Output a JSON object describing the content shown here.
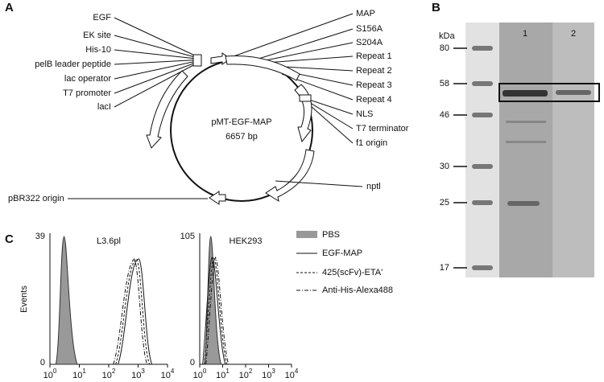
{
  "panel_a": {
    "label": "A",
    "left_labels": [
      "EGF",
      "EK site",
      "His-10",
      "pelB leader peptide",
      "lac operator",
      "T7 promoter",
      "lacI"
    ],
    "right_labels": [
      "MAP",
      "S156A",
      "S204A",
      "Repeat 1",
      "Repeat 2",
      "Repeat 3",
      "Repeat 4",
      "NLS",
      "T7 terminator",
      "f1 origin"
    ],
    "plasmid_name": "pMT-EGF-MAP",
    "plasmid_size": "6657 bp",
    "nptl": "nptl",
    "origin": "pBR322 origin"
  },
  "panel_b": {
    "label": "B",
    "unit": "kDa",
    "lanes": [
      "1",
      "2"
    ],
    "markers": [
      "80",
      "58",
      "46",
      "30",
      "25",
      "17"
    ]
  },
  "panel_c": {
    "label": "C",
    "y_axis": "Events",
    "plots": [
      {
        "title": "L3.6pl",
        "ymax": "39",
        "ymin": "0"
      },
      {
        "title": "HEK293",
        "ymax": "105",
        "ymin": "0"
      }
    ],
    "x_ticks": [
      {
        "base": "10",
        "exp": "0"
      },
      {
        "base": "10",
        "exp": "1"
      },
      {
        "base": "10",
        "exp": "2"
      },
      {
        "base": "10",
        "exp": "3"
      },
      {
        "base": "10",
        "exp": "4"
      }
    ],
    "legend": [
      "PBS",
      "EGF-MAP",
      "425(scFv)-ETA'",
      "Anti-His-Alexa488"
    ]
  }
}
